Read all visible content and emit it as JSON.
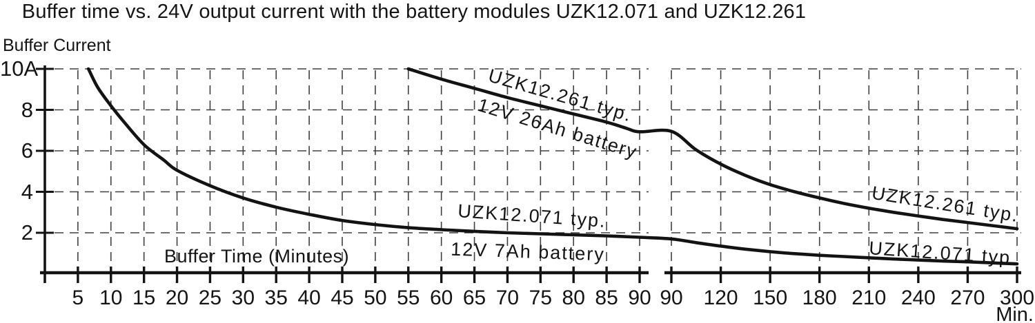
{
  "chart_data": {
    "type": "line",
    "title": "Buffer time vs. 24V output current with the battery modules UZK12.071 and UZK12.261",
    "ylabel": "Buffer Current",
    "xlabel_inside": "Buffer Time (Minutes)",
    "x_unit": "Min.",
    "ylim": [
      0,
      10
    ],
    "grid": true,
    "axis_break": "x axis breaks at 90 min: left panel 0-90 min at 5 min/div, right panel 90-300 min at 30 min/div",
    "y_ticks": [
      {
        "label": "10A",
        "value": 10
      },
      {
        "label": "8",
        "value": 8
      },
      {
        "label": "6",
        "value": 6
      },
      {
        "label": "4",
        "value": 4
      },
      {
        "label": "2",
        "value": 2
      }
    ],
    "x_ticks_left": [
      5,
      10,
      15,
      20,
      25,
      30,
      35,
      40,
      45,
      50,
      55,
      60,
      65,
      70,
      75,
      80,
      85,
      90
    ],
    "x_ticks_right": [
      90,
      120,
      150,
      180,
      210,
      240,
      270,
      300
    ],
    "series": [
      {
        "name": "UZK12.261 typ.",
        "battery": "12V 26Ah battery",
        "left_points": [
          [
            55,
            10
          ],
          [
            60,
            9.5
          ],
          [
            65,
            9.05
          ],
          [
            70,
            8.6
          ],
          [
            75,
            8.2
          ],
          [
            80,
            7.8
          ],
          [
            85,
            7.4
          ],
          [
            88,
            7.1
          ],
          [
            90,
            6.93
          ]
        ],
        "right_points": [
          [
            90,
            6.95
          ],
          [
            105,
            6.05
          ],
          [
            120,
            5.35
          ],
          [
            135,
            4.8
          ],
          [
            150,
            4.35
          ],
          [
            165,
            4.0
          ],
          [
            180,
            3.7
          ],
          [
            195,
            3.43
          ],
          [
            210,
            3.2
          ],
          [
            225,
            3.0
          ],
          [
            240,
            2.82
          ],
          [
            255,
            2.65
          ],
          [
            270,
            2.5
          ],
          [
            285,
            2.35
          ],
          [
            300,
            2.2
          ]
        ]
      },
      {
        "name": "UZK12.071 typ.",
        "battery": "12V 7Ah battery",
        "left_points": [
          [
            6.6,
            10
          ],
          [
            8,
            9.1
          ],
          [
            10,
            8.2
          ],
          [
            12,
            7.4
          ],
          [
            15,
            6.3
          ],
          [
            18,
            5.55
          ],
          [
            20,
            5.05
          ],
          [
            25,
            4.3
          ],
          [
            30,
            3.7
          ],
          [
            35,
            3.25
          ],
          [
            40,
            2.9
          ],
          [
            45,
            2.6
          ],
          [
            50,
            2.4
          ],
          [
            55,
            2.25
          ],
          [
            60,
            2.15
          ],
          [
            65,
            2.07
          ],
          [
            70,
            2.0
          ],
          [
            75,
            1.95
          ],
          [
            80,
            1.9
          ],
          [
            85,
            1.85
          ],
          [
            90,
            1.78
          ]
        ],
        "right_points": [
          [
            90,
            1.7
          ],
          [
            105,
            1.52
          ],
          [
            120,
            1.35
          ],
          [
            135,
            1.2
          ],
          [
            150,
            1.08
          ],
          [
            165,
            0.98
          ],
          [
            180,
            0.9
          ],
          [
            195,
            0.84
          ],
          [
            210,
            0.78
          ],
          [
            225,
            0.72
          ],
          [
            240,
            0.67
          ],
          [
            255,
            0.62
          ],
          [
            270,
            0.58
          ],
          [
            285,
            0.53
          ],
          [
            300,
            0.48
          ]
        ]
      }
    ]
  },
  "colors": {
    "ink": "#131313",
    "grid": "#3f3f3f",
    "background": "#ffffff"
  }
}
